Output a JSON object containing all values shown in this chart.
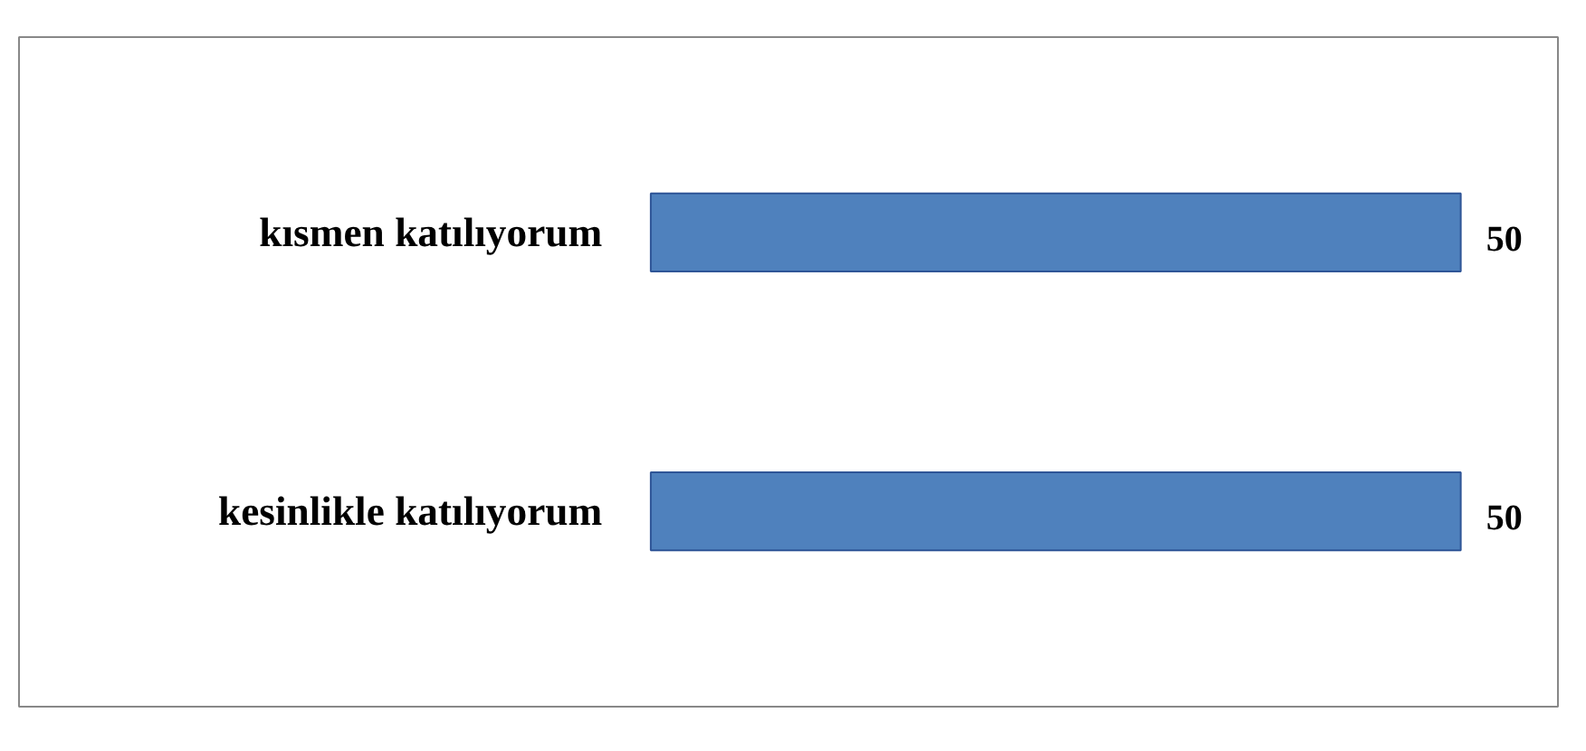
{
  "chart_data": {
    "type": "bar",
    "orientation": "horizontal",
    "categories": [
      "kısmen katılıyorum",
      "kesinlikle katılıyorum"
    ],
    "values": [
      50,
      50
    ],
    "color": "#4f81bd",
    "data_labels": true,
    "grid": false
  }
}
